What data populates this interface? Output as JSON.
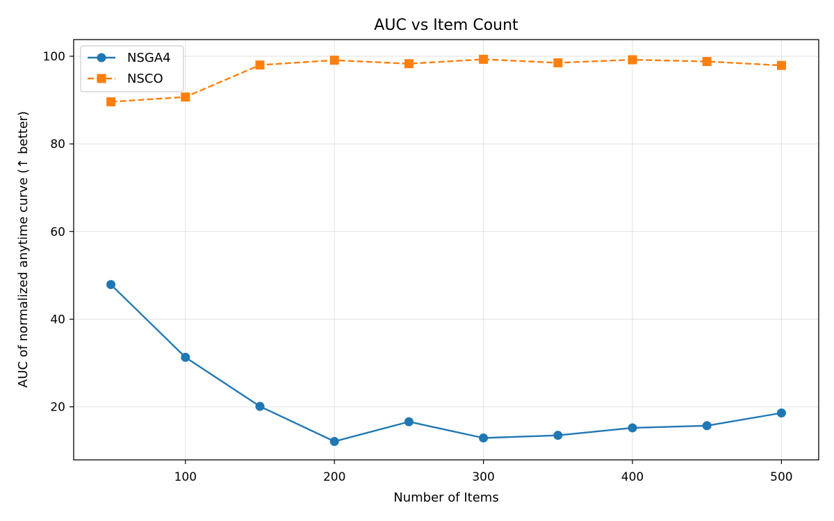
{
  "chart_data": {
    "type": "line",
    "title": "AUC vs Item Count",
    "xlabel": "Number of Items",
    "ylabel": "AUC of normalized anytime curve (↑ better)",
    "x": [
      50,
      100,
      150,
      200,
      250,
      300,
      350,
      400,
      450,
      500
    ],
    "xlim": [
      25,
      525
    ],
    "ylim": [
      7.9,
      103.8
    ],
    "xticks": [
      100,
      200,
      300,
      400,
      500
    ],
    "yticks": [
      20,
      40,
      60,
      80,
      100
    ],
    "grid": true,
    "legend_position": "top-left",
    "series": [
      {
        "name": "NSGA4",
        "color": "#1f77b4",
        "line_style": "solid",
        "marker": "circle",
        "values": [
          47.9,
          31.3,
          20.1,
          12.1,
          16.6,
          12.9,
          13.5,
          15.2,
          15.7,
          18.6
        ]
      },
      {
        "name": "NSCO",
        "color": "#ff7f0e",
        "line_style": "dashed",
        "marker": "square",
        "values": [
          89.6,
          90.7,
          98.0,
          99.1,
          98.3,
          99.3,
          98.5,
          99.2,
          98.8,
          97.9
        ]
      }
    ]
  }
}
